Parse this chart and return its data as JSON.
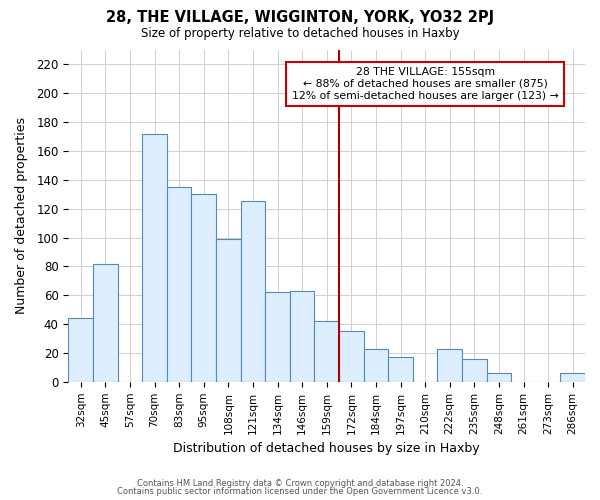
{
  "title": "28, THE VILLAGE, WIGGINTON, YORK, YO32 2PJ",
  "subtitle": "Size of property relative to detached houses in Haxby",
  "xlabel": "Distribution of detached houses by size in Haxby",
  "ylabel": "Number of detached properties",
  "footer_line1": "Contains HM Land Registry data © Crown copyright and database right 2024.",
  "footer_line2": "Contains public sector information licensed under the Open Government Licence v3.0.",
  "bar_labels": [
    "32sqm",
    "45sqm",
    "57sqm",
    "70sqm",
    "83sqm",
    "95sqm",
    "108sqm",
    "121sqm",
    "134sqm",
    "146sqm",
    "159sqm",
    "172sqm",
    "184sqm",
    "197sqm",
    "210sqm",
    "222sqm",
    "235sqm",
    "248sqm",
    "261sqm",
    "273sqm",
    "286sqm"
  ],
  "bar_values": [
    44,
    82,
    0,
    172,
    135,
    130,
    99,
    125,
    62,
    63,
    42,
    35,
    23,
    17,
    0,
    23,
    16,
    6,
    0,
    0,
    6
  ],
  "bar_color": "#ddeeff",
  "bar_edge_color": "#5588bb",
  "grid_color": "#d0d0d0",
  "vline_color": "#aa0000",
  "vline_index": 10,
  "annotation_title": "28 THE VILLAGE: 155sqm",
  "annotation_line1": "← 88% of detached houses are smaller (875)",
  "annotation_line2": "12% of semi-detached houses are larger (123) →",
  "ylim": [
    0,
    230
  ],
  "yticks": [
    0,
    20,
    40,
    60,
    80,
    100,
    120,
    140,
    160,
    180,
    200,
    220
  ],
  "fig_width": 6.0,
  "fig_height": 5.0,
  "fig_dpi": 100
}
